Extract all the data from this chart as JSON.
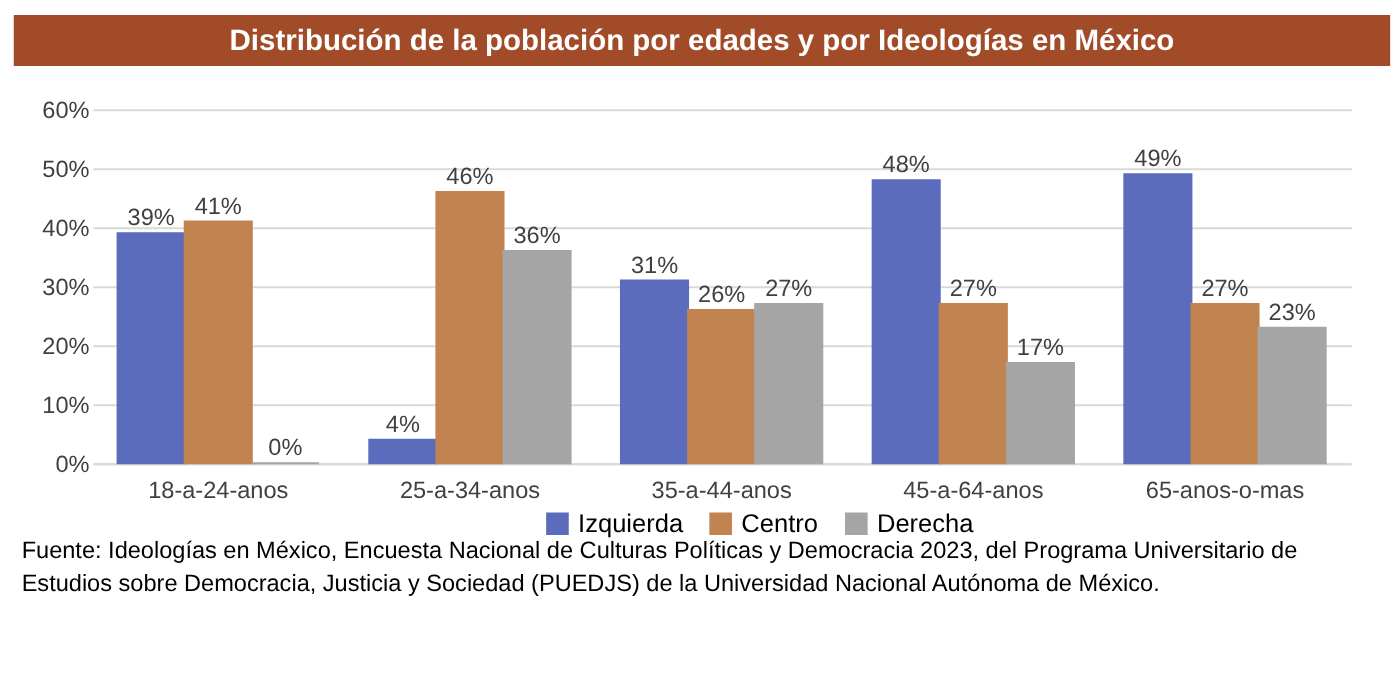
{
  "chart_data": {
    "type": "bar",
    "title": "Distribución de la población por edades y por Ideologías en México",
    "categories": [
      "18-a-24-anos",
      "25-a-34-anos",
      "35-a-44-anos",
      "45-a-64-anos",
      "65-anos-o-mas"
    ],
    "series": [
      {
        "name": "Izquierda",
        "color": "#5b6cbd",
        "values": [
          39,
          4,
          31,
          48,
          49
        ],
        "value_labels": [
          "39%",
          "4%",
          "31%",
          "48%",
          "49%"
        ]
      },
      {
        "name": "Centro",
        "color": "#c1834f",
        "values": [
          41,
          46,
          26,
          27,
          27
        ],
        "value_labels": [
          "41%",
          "46%",
          "26%",
          "27%",
          "27%"
        ]
      },
      {
        "name": "Derecha",
        "color": "#a5a5a5",
        "values": [
          0,
          36,
          27,
          17,
          23
        ],
        "value_labels": [
          "0%",
          "36%",
          "27%",
          "17%",
          "23%"
        ]
      }
    ],
    "ylim": [
      0,
      60
    ],
    "yticks": [
      {
        "value": 0,
        "label": "0%"
      },
      {
        "value": 10,
        "label": "10%"
      },
      {
        "value": 20,
        "label": "20%"
      },
      {
        "value": 30,
        "label": "30%"
      },
      {
        "value": 40,
        "label": "40%"
      },
      {
        "value": 50,
        "label": "50%"
      },
      {
        "value": 60,
        "label": "60%"
      }
    ],
    "grid": "y",
    "legend": "bottom",
    "annotations": [
      "Fuente: Ideologías en México, Encuesta Nacional de Culturas Políticas y Democracia 2023, del Programa Universitario de Estudios sobre Democracia, Justicia y Sociedad (PUEDJS) de la Universidad Nacional Autónoma de México."
    ]
  }
}
